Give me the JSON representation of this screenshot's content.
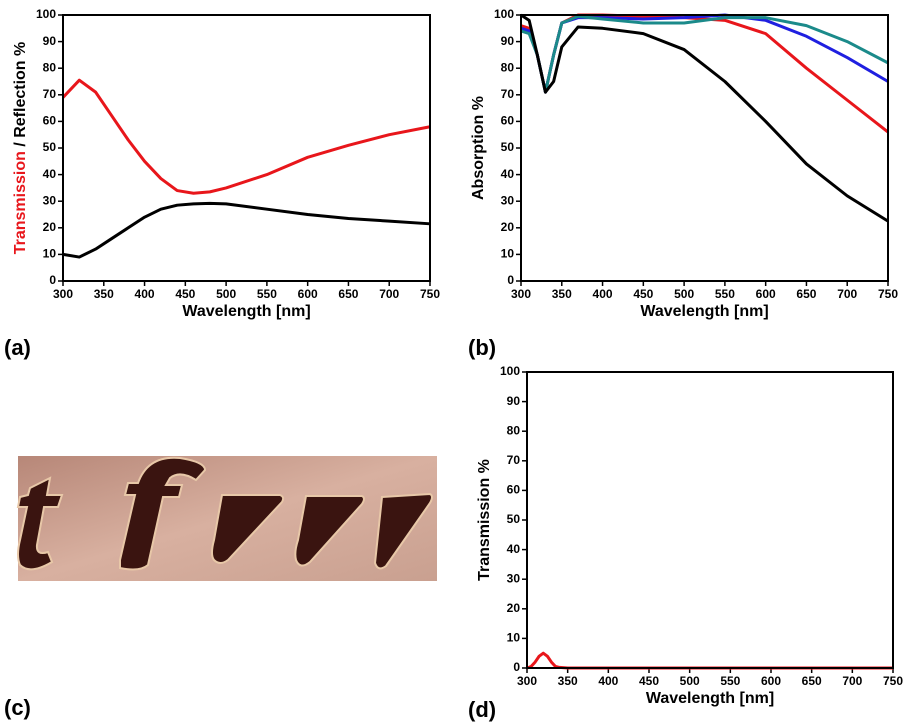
{
  "panel_labels": [
    "(a)",
    "(b)",
    "(c)",
    "(d)"
  ],
  "chart_data": [
    {
      "type": "line",
      "xlabel": "Wavelength [nm]",
      "ylabel": [
        {
          "text": "Transmission",
          "color": "#e8161b"
        },
        {
          "text": " / Reflection %",
          "color": "#000000"
        }
      ],
      "x": [
        300,
        320,
        340,
        360,
        380,
        400,
        420,
        440,
        460,
        480,
        500,
        550,
        600,
        650,
        700,
        750
      ],
      "series": [
        {
          "color": "#e8161b",
          "values": [
            69,
            75.5,
            71,
            62,
            53,
            45,
            38.5,
            34,
            33,
            33.5,
            35,
            40,
            46.5,
            51,
            55,
            58
          ]
        },
        {
          "color": "#000000",
          "values": [
            10,
            9,
            12,
            16,
            20,
            24,
            27,
            28.5,
            29,
            29.2,
            29,
            27,
            25,
            23.5,
            22.5,
            21.5
          ]
        }
      ],
      "xlim": [
        300,
        750
      ],
      "xticks": [
        300,
        350,
        400,
        450,
        500,
        550,
        600,
        650,
        700,
        750
      ],
      "ylim": [
        0,
        100
      ],
      "yticks": [
        0,
        10,
        20,
        30,
        40,
        50,
        60,
        70,
        80,
        90,
        100
      ]
    },
    {
      "type": "line",
      "xlabel": "Wavelength [nm]",
      "ylabel": [
        {
          "text": "Absorption %",
          "color": "#000000"
        }
      ],
      "x": [
        300,
        310,
        320,
        330,
        340,
        350,
        370,
        400,
        450,
        500,
        550,
        600,
        650,
        700,
        750
      ],
      "series": [
        {
          "color": "#e8161b",
          "values": [
            96,
            95,
            85,
            71,
            85,
            97,
            100,
            100,
            99.5,
            99,
            98,
            93,
            80,
            68,
            56
          ]
        },
        {
          "color": "#1f1fe0",
          "values": [
            95,
            94,
            85,
            71,
            85,
            97,
            99,
            99,
            98.5,
            99,
            100,
            98,
            92,
            84,
            75
          ]
        },
        {
          "color": "#1b8a8a",
          "values": [
            94,
            93,
            85,
            71,
            85,
            97,
            99.5,
            98.5,
            97,
            97,
            99,
            99,
            96,
            90,
            82
          ]
        },
        {
          "color": "#000000",
          "values": [
            100,
            98,
            85,
            71,
            75,
            88,
            95.5,
            95,
            93,
            87,
            75,
            60,
            44,
            32,
            22.5
          ]
        }
      ],
      "xlim": [
        300,
        750
      ],
      "xticks": [
        300,
        350,
        400,
        450,
        500,
        550,
        600,
        650,
        700,
        750
      ],
      "ylim": [
        0,
        100
      ],
      "yticks": [
        0,
        10,
        20,
        30,
        40,
        50,
        60,
        70,
        80,
        90,
        100
      ]
    },
    {
      "type": "line",
      "xlabel": "Wavelength [nm]",
      "ylabel": [
        {
          "text": "Transmission %",
          "color": "#000000"
        }
      ],
      "x": [
        300,
        305,
        310,
        315,
        320,
        325,
        330,
        335,
        340,
        350,
        400,
        450,
        500,
        550,
        600,
        650,
        700,
        750
      ],
      "series": [
        {
          "color": "#e8161b",
          "values": [
            0,
            0.5,
            2,
            4,
            5,
            4,
            2,
            0.5,
            0.2,
            0,
            0,
            0,
            0,
            0,
            0,
            0,
            0,
            0
          ]
        }
      ],
      "xlim": [
        300,
        750
      ],
      "xticks": [
        300,
        350,
        400,
        450,
        500,
        550,
        600,
        650,
        700,
        750
      ],
      "ylim": [
        0,
        100
      ],
      "yticks": [
        0,
        10,
        20,
        30,
        40,
        50,
        60,
        70,
        80,
        90,
        100
      ]
    }
  ]
}
